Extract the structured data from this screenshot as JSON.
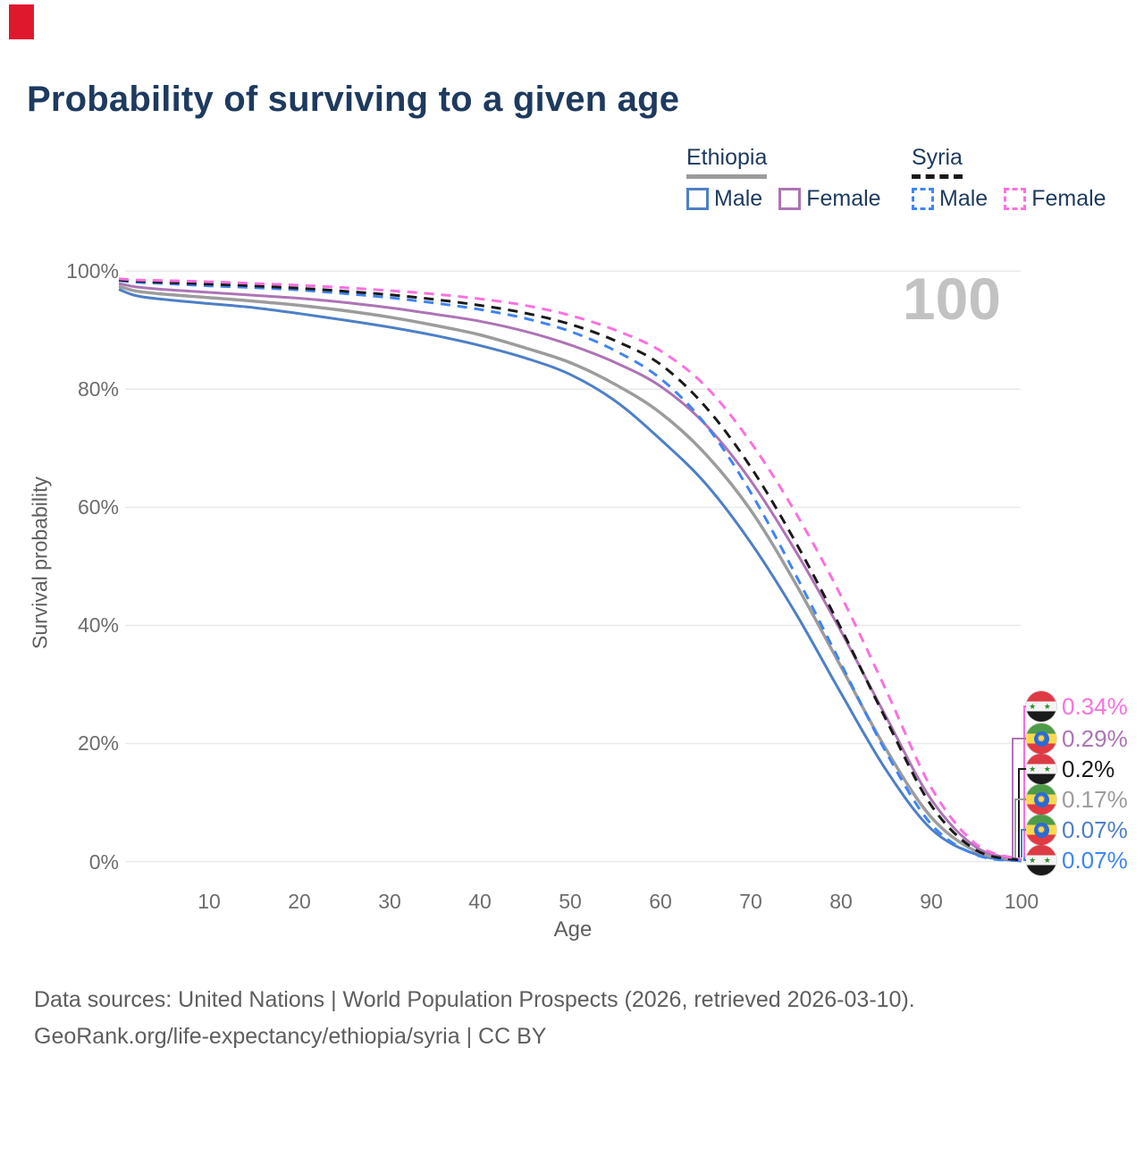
{
  "page": {
    "title": "Probability of surviving to a given age",
    "watermark": "100"
  },
  "legend": {
    "groups": [
      {
        "name": "Ethiopia",
        "line_style": "solid",
        "line_color": "#9c9c9c",
        "items": [
          {
            "label": "Male",
            "color": "#4d7fc6",
            "dashed": false
          },
          {
            "label": "Female",
            "color": "#ad74b5",
            "dashed": false
          }
        ]
      },
      {
        "name": "Syria",
        "line_style": "dashed",
        "line_color": "#1a1a1a",
        "items": [
          {
            "label": "Male",
            "color": "#3f85f2",
            "dashed": true
          },
          {
            "label": "Female",
            "color": "#fb70e0",
            "dashed": true
          }
        ]
      }
    ]
  },
  "footer": {
    "line1": "Data sources: United Nations | World Population Prospects (2026, retrieved 2026-03-10).",
    "line2": "GeoRank.org/life-expectancy/ethiopia/syria | CC BY"
  },
  "chart_data": {
    "type": "line",
    "title": "Probability of surviving to a given age",
    "xlabel": "Age",
    "ylabel": "Survival probability",
    "xlim": [
      0,
      100
    ],
    "ylim": [
      0,
      100
    ],
    "x_ticks": [
      10,
      20,
      30,
      40,
      50,
      60,
      70,
      80,
      90,
      100
    ],
    "y_ticks": [
      0,
      20,
      40,
      60,
      80,
      100
    ],
    "y_tick_format": "percent",
    "grid": "horizontal",
    "age_counter": "100",
    "colors": {
      "ethiopia_male": "#4d7fc6",
      "ethiopia_both": "#9c9c9c",
      "ethiopia_female": "#ad74b5",
      "syria_male": "#3f85f2",
      "syria_both": "#1a1a1a",
      "syria_female": "#fb70e0",
      "grid": "#eaeaea",
      "title_navy": "#1e3a5f"
    },
    "series": [
      {
        "name": "Ethiopia Male",
        "color": "#4d7fc6",
        "dashed": false,
        "width": 3,
        "points": [
          [
            0,
            96.9
          ],
          [
            2,
            95.8
          ],
          [
            5,
            95.2
          ],
          [
            10,
            94.5
          ],
          [
            15,
            93.8
          ],
          [
            20,
            92.8
          ],
          [
            25,
            91.7
          ],
          [
            30,
            90.5
          ],
          [
            35,
            89.1
          ],
          [
            40,
            87.4
          ],
          [
            45,
            85.3
          ],
          [
            50,
            82.5
          ],
          [
            55,
            78.0
          ],
          [
            60,
            71.5
          ],
          [
            65,
            64.0
          ],
          [
            70,
            54.0
          ],
          [
            75,
            42.0
          ],
          [
            80,
            28.5
          ],
          [
            85,
            15.5
          ],
          [
            90,
            5.5
          ],
          [
            95,
            1.2
          ],
          [
            100,
            0.07
          ]
        ]
      },
      {
        "name": "Ethiopia Both sexes",
        "color": "#9c9c9c",
        "dashed": false,
        "width": 3.5,
        "points": [
          [
            0,
            97.4
          ],
          [
            2,
            96.6
          ],
          [
            5,
            96.1
          ],
          [
            10,
            95.5
          ],
          [
            15,
            94.9
          ],
          [
            20,
            94.2
          ],
          [
            25,
            93.3
          ],
          [
            30,
            92.2
          ],
          [
            35,
            90.8
          ],
          [
            40,
            89.2
          ],
          [
            45,
            87.0
          ],
          [
            50,
            84.5
          ],
          [
            55,
            80.8
          ],
          [
            60,
            76.0
          ],
          [
            65,
            69.0
          ],
          [
            70,
            59.5
          ],
          [
            75,
            47.0
          ],
          [
            80,
            33.0
          ],
          [
            85,
            19.0
          ],
          [
            90,
            7.5
          ],
          [
            95,
            1.7
          ],
          [
            100,
            0.17
          ]
        ]
      },
      {
        "name": "Ethiopia Female",
        "color": "#ad74b5",
        "dashed": false,
        "width": 3,
        "points": [
          [
            0,
            97.9
          ],
          [
            2,
            97.3
          ],
          [
            5,
            96.9
          ],
          [
            10,
            96.4
          ],
          [
            15,
            95.9
          ],
          [
            20,
            95.4
          ],
          [
            25,
            94.7
          ],
          [
            30,
            93.8
          ],
          [
            35,
            92.7
          ],
          [
            40,
            91.5
          ],
          [
            45,
            89.8
          ],
          [
            50,
            87.5
          ],
          [
            55,
            84.5
          ],
          [
            60,
            80.5
          ],
          [
            65,
            74.0
          ],
          [
            70,
            64.5
          ],
          [
            75,
            52.5
          ],
          [
            80,
            39.0
          ],
          [
            85,
            24.5
          ],
          [
            90,
            10.5
          ],
          [
            95,
            2.4
          ],
          [
            100,
            0.29
          ]
        ]
      },
      {
        "name": "Syria Male",
        "color": "#3f85f2",
        "dashed": true,
        "width": 3,
        "points": [
          [
            0,
            98.4
          ],
          [
            2,
            98.1
          ],
          [
            5,
            97.9
          ],
          [
            10,
            97.5
          ],
          [
            15,
            97.2
          ],
          [
            20,
            96.8
          ],
          [
            25,
            96.2
          ],
          [
            30,
            95.5
          ],
          [
            35,
            94.6
          ],
          [
            40,
            93.5
          ],
          [
            45,
            92.0
          ],
          [
            50,
            89.8
          ],
          [
            55,
            86.5
          ],
          [
            60,
            81.8
          ],
          [
            65,
            74.0
          ],
          [
            70,
            62.5
          ],
          [
            75,
            48.5
          ],
          [
            80,
            33.5
          ],
          [
            85,
            18.5
          ],
          [
            90,
            6.3
          ],
          [
            95,
            1.1
          ],
          [
            100,
            0.07
          ]
        ]
      },
      {
        "name": "Syria Both sexes",
        "color": "#1a1a1a",
        "dashed": true,
        "width": 3,
        "points": [
          [
            0,
            98.5
          ],
          [
            2,
            98.3
          ],
          [
            5,
            98.1
          ],
          [
            10,
            97.8
          ],
          [
            15,
            97.5
          ],
          [
            20,
            97.1
          ],
          [
            25,
            96.6
          ],
          [
            30,
            96.0
          ],
          [
            35,
            95.2
          ],
          [
            40,
            94.2
          ],
          [
            45,
            92.9
          ],
          [
            50,
            91.0
          ],
          [
            55,
            88.2
          ],
          [
            60,
            84.2
          ],
          [
            65,
            77.0
          ],
          [
            70,
            66.8
          ],
          [
            75,
            54.0
          ],
          [
            80,
            39.5
          ],
          [
            85,
            24.0
          ],
          [
            90,
            9.5
          ],
          [
            95,
            1.9
          ],
          [
            100,
            0.2
          ]
        ]
      },
      {
        "name": "Syria Female",
        "color": "#fb70e0",
        "dashed": true,
        "width": 3,
        "points": [
          [
            0,
            98.7
          ],
          [
            2,
            98.5
          ],
          [
            5,
            98.4
          ],
          [
            10,
            98.2
          ],
          [
            15,
            97.9
          ],
          [
            20,
            97.6
          ],
          [
            25,
            97.2
          ],
          [
            30,
            96.7
          ],
          [
            35,
            96.1
          ],
          [
            40,
            95.3
          ],
          [
            45,
            94.2
          ],
          [
            50,
            92.5
          ],
          [
            55,
            90.0
          ],
          [
            60,
            86.5
          ],
          [
            65,
            80.5
          ],
          [
            70,
            71.0
          ],
          [
            75,
            59.0
          ],
          [
            80,
            45.0
          ],
          [
            85,
            29.0
          ],
          [
            90,
            12.5
          ],
          [
            95,
            2.9
          ],
          [
            100,
            0.34
          ]
        ]
      }
    ],
    "end_labels": [
      {
        "text": "0.34%",
        "color": "#fb70e0",
        "flag": "syria",
        "series": "Syria Female"
      },
      {
        "text": "0.29%",
        "color": "#ad74b5",
        "flag": "ethiopia",
        "series": "Ethiopia Female"
      },
      {
        "text": "0.2%",
        "color": "#1a1a1a",
        "flag": "syria",
        "series": "Syria Both sexes"
      },
      {
        "text": "0.17%",
        "color": "#9c9c9c",
        "flag": "ethiopia",
        "series": "Ethiopia Both sexes"
      },
      {
        "text": "0.07%",
        "color": "#4d7fc6",
        "flag": "ethiopia",
        "series": "Ethiopia Male"
      },
      {
        "text": "0.07%",
        "color": "#3f85f2",
        "flag": "syria",
        "series": "Syria Male"
      }
    ]
  }
}
